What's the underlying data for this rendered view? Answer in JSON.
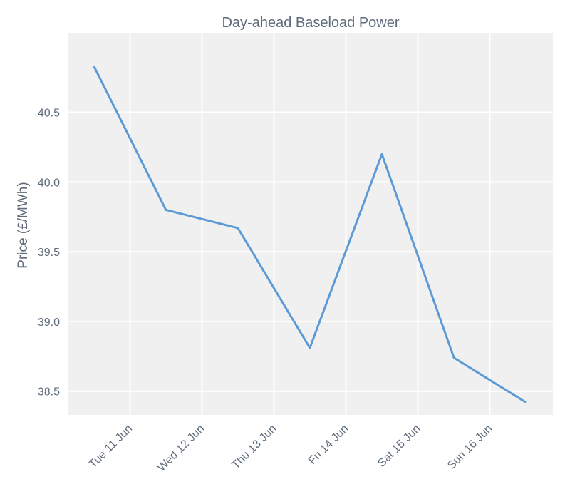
{
  "chart_data": {
    "type": "line",
    "title": "Day-ahead Baseload Power",
    "xlabel": "",
    "ylabel": "Price (£/MWh)",
    "x": [
      "2024-06-10 12:00",
      "2024-06-11 12:00",
      "2024-06-12 12:00",
      "2024-06-13 12:00",
      "2024-06-14 12:00",
      "2024-06-15 12:00",
      "2024-06-16 12:00"
    ],
    "series": [
      {
        "values": [
          40.83,
          39.8,
          39.67,
          38.81,
          40.2,
          38.74,
          38.42
        ]
      }
    ],
    "xticks": [
      "Tue 11 Jun",
      "Wed 12 Jun",
      "Thu 13 Jun",
      "Fri 14 Jun",
      "Sat 15 Jun",
      "Sun 16 Jun"
    ],
    "yticks": [
      "38.5",
      "39.0",
      "39.5",
      "40.0",
      "40.5"
    ],
    "ylim": [
      38.33,
      41.07
    ],
    "xlim": [
      "2024-06-10 03:30",
      "2024-06-16 21:00"
    ],
    "grid": true,
    "legend": "none",
    "colors": {
      "line": "#5b9ad5",
      "plot_background": "#f0f0f0",
      "grid": "#ffffff",
      "text": "#5f6b7a"
    }
  }
}
